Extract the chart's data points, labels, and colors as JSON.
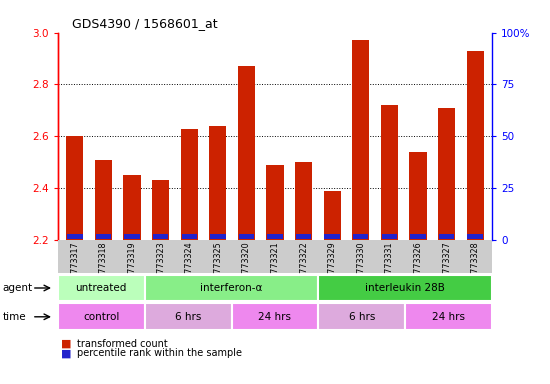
{
  "title": "GDS4390 / 1568601_at",
  "samples": [
    "GSM773317",
    "GSM773318",
    "GSM773319",
    "GSM773323",
    "GSM773324",
    "GSM773325",
    "GSM773320",
    "GSM773321",
    "GSM773322",
    "GSM773329",
    "GSM773330",
    "GSM773331",
    "GSM773326",
    "GSM773327",
    "GSM773328"
  ],
  "transformed_count": [
    2.6,
    2.51,
    2.45,
    2.43,
    2.63,
    2.64,
    2.87,
    2.49,
    2.5,
    2.39,
    2.97,
    2.72,
    2.54,
    2.71,
    2.93
  ],
  "percentile_rank": [
    5,
    5,
    5,
    5,
    6,
    7,
    8,
    5,
    5,
    5,
    7,
    6,
    6,
    6,
    7
  ],
  "ymin": 2.2,
  "ymax": 3.0,
  "yticks_left": [
    2.2,
    2.4,
    2.6,
    2.8,
    3.0
  ],
  "yticks_right": [
    0,
    25,
    50,
    75,
    100
  ],
  "bar_color_red": "#cc2200",
  "bar_color_blue": "#2222cc",
  "agent_groups": [
    {
      "label": "untreated",
      "start": 0,
      "end": 3,
      "color": "#bbffbb"
    },
    {
      "label": "interferon-α",
      "start": 3,
      "end": 9,
      "color": "#88ee88"
    },
    {
      "label": "interleukin 28B",
      "start": 9,
      "end": 15,
      "color": "#44cc44"
    }
  ],
  "time_groups": [
    {
      "label": "control",
      "start": 0,
      "end": 3,
      "color": "#ee88ee"
    },
    {
      "label": "6 hrs",
      "start": 3,
      "end": 6,
      "color": "#ddaadd"
    },
    {
      "label": "24 hrs",
      "start": 6,
      "end": 9,
      "color": "#ee88ee"
    },
    {
      "label": "6 hrs",
      "start": 9,
      "end": 12,
      "color": "#ddaadd"
    },
    {
      "label": "24 hrs",
      "start": 12,
      "end": 15,
      "color": "#ee88ee"
    }
  ],
  "legend_red": "transformed count",
  "legend_blue": "percentile rank within the sample",
  "xlabel_agent": "agent",
  "xlabel_time": "time",
  "xtick_bg": "#cccccc"
}
